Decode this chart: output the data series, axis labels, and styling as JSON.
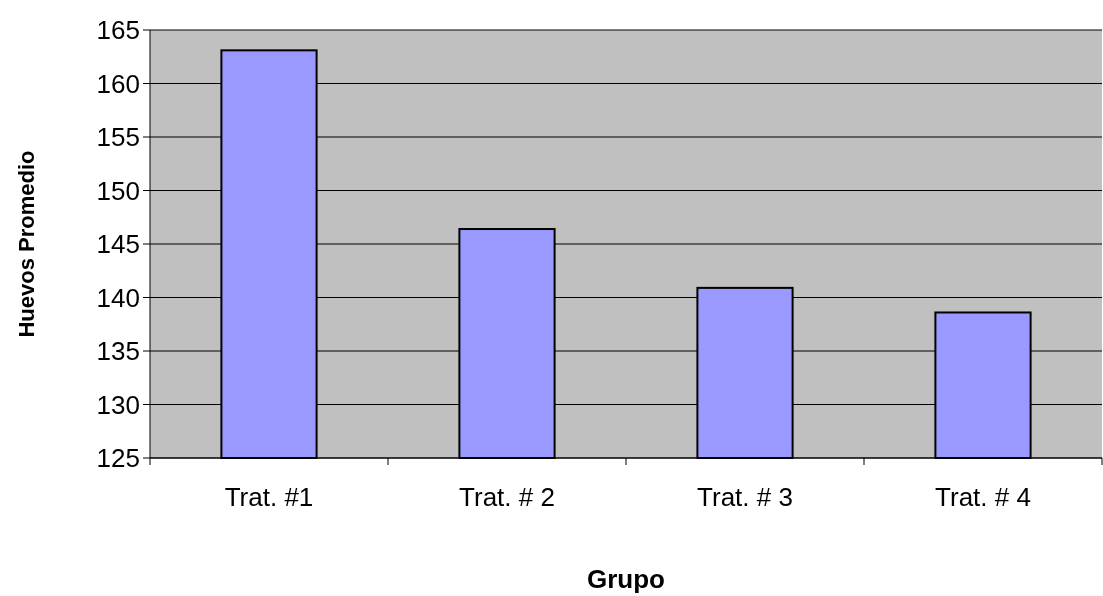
{
  "chart_data": {
    "type": "bar",
    "xlabel": "Grupo",
    "ylabel": "Huevos Promedio",
    "categories": [
      "Trat. #1",
      "Trat. # 2",
      "Trat. # 3",
      "Trat. # 4"
    ],
    "values": [
      163.1,
      146.4,
      140.9,
      138.6
    ],
    "color": "#9999ff",
    "ylim": [
      125,
      165
    ],
    "yticks": [
      125,
      130,
      135,
      140,
      145,
      150,
      155,
      160,
      165
    ],
    "grid": "y"
  }
}
